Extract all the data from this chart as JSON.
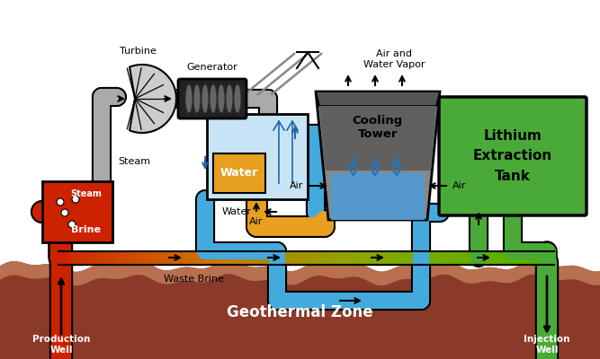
{
  "bg_color": "#ffffff",
  "ground_brown": "#8B3A2A",
  "ground_light": "#b87050",
  "red_color": "#cc2200",
  "green_color": "#4aaa38",
  "blue_color": "#44aadd",
  "orange_color": "#e8a020",
  "grey_pipe": "#aaaaaa",
  "dark_grey": "#555555",
  "labels": {
    "turbine": "Turbine",
    "generator": "Generator",
    "air_water_vapor": "Air and\nWater Vapor",
    "cooling_tower": "Cooling\nTower",
    "lithium_tank": "Lithium\nExtraction\nTank",
    "steam_pipe": "Steam",
    "steam_box": "Steam",
    "brine": "Brine",
    "water_hex": "Water",
    "air_left": "Air",
    "air_right": "Air",
    "water_label": "Water",
    "waste_brine": "Waste Brine",
    "production_well": "Production\nWell",
    "geothermal_zone": "Geothermal Zone",
    "injection_well": "Injection\nWell"
  },
  "fig_w": 6.67,
  "fig_h": 4.0,
  "dpi": 100
}
